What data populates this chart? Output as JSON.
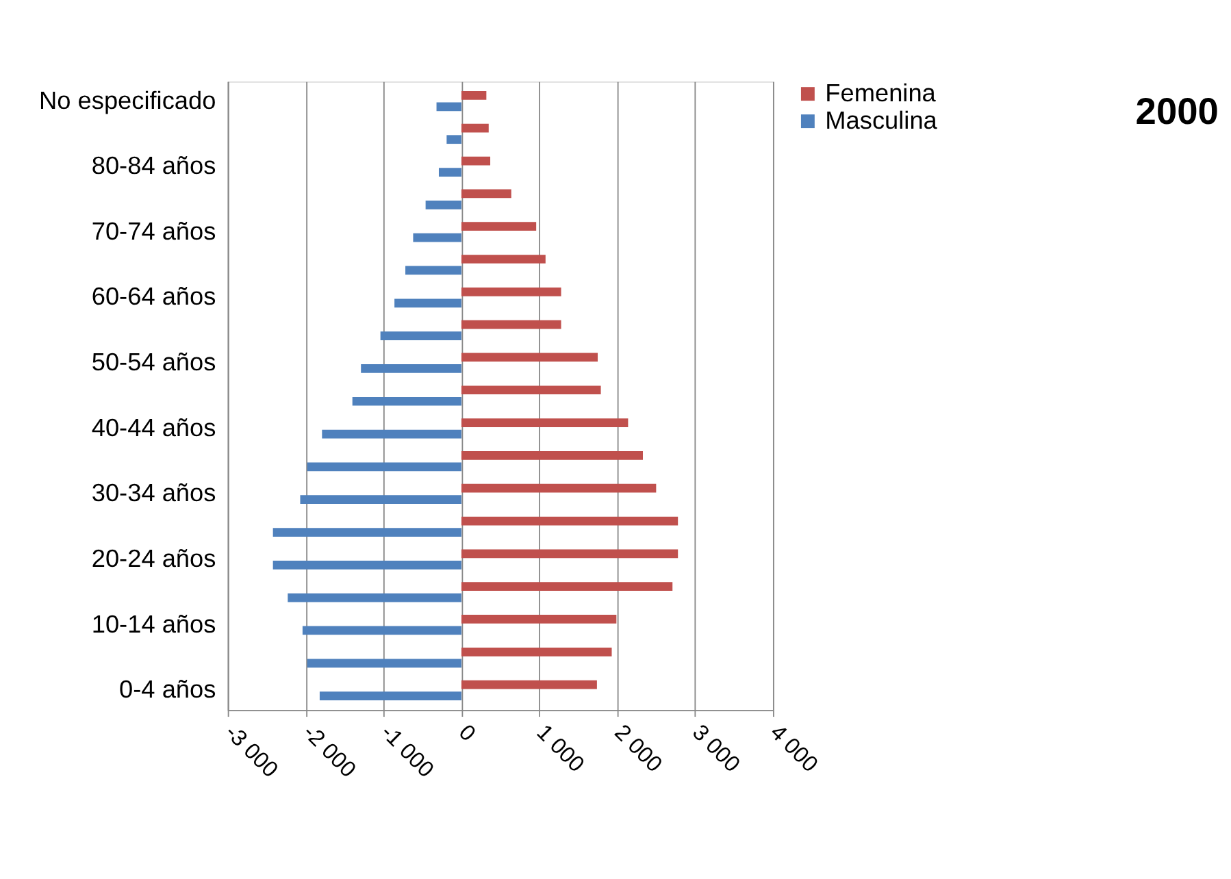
{
  "chart_data": {
    "type": "bar",
    "orientation": "horizontal",
    "title": "2000",
    "categories": [
      "No especificado",
      null,
      "80-84 años",
      null,
      "70-74 años",
      null,
      "60-64 años",
      null,
      "50-54 años",
      null,
      "40-44 años",
      null,
      "30-34 años",
      null,
      "20-24 años",
      null,
      "10-14 años",
      null,
      "0-4 años"
    ],
    "series": [
      {
        "name": "Femenina",
        "color": "#c0504d",
        "values": [
          320,
          350,
          370,
          640,
          960,
          1080,
          1280,
          1280,
          1750,
          1790,
          2140,
          2330,
          2500,
          2780,
          2780,
          2710,
          1990,
          1930,
          1740
        ]
      },
      {
        "name": "Masculina",
        "color": "#4f81bd",
        "values": [
          -320,
          -190,
          -290,
          -460,
          -620,
          -720,
          -860,
          -1040,
          -1290,
          -1400,
          -1790,
          -1980,
          -2070,
          -2420,
          -2420,
          -2230,
          -2040,
          -1980,
          -1820
        ]
      }
    ],
    "xlim": [
      -3000,
      4000
    ],
    "xticks": [
      {
        "value": -3000,
        "label": "-3 000"
      },
      {
        "value": -2000,
        "label": "-2 000"
      },
      {
        "value": -1000,
        "label": "-1 000"
      },
      0,
      {
        "value": 1000,
        "label": "1 000"
      },
      {
        "value": 2000,
        "label": "2 000"
      },
      {
        "value": 3000,
        "label": "3 000"
      },
      {
        "value": 4000,
        "label": "4 000"
      }
    ],
    "grid": "x",
    "legend": "right"
  }
}
